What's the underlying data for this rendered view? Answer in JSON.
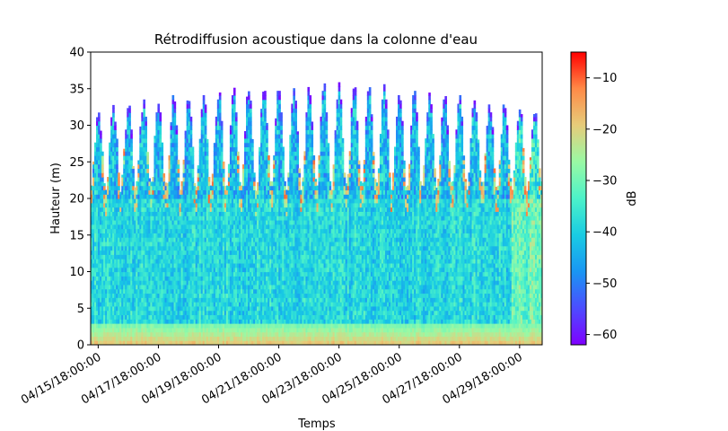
{
  "chart_data": {
    "type": "heatmap",
    "title": "Rétrodiffusion acoustique dans la colonne d'eau",
    "xlabel": "Temps",
    "ylabel": "Hauteur (m)",
    "ylim": [
      0,
      40
    ],
    "yticks": [
      0,
      5,
      10,
      15,
      20,
      25,
      30,
      35,
      40
    ],
    "xlim": [
      "04/15/12:00:00",
      "04/30/12:00:00"
    ],
    "xticks": [
      "04/15/18:00:00",
      "04/17/18:00:00",
      "04/19/18:00:00",
      "04/21/18:00:00",
      "04/23/18:00:00",
      "04/25/18:00:00",
      "04/27/18:00:00",
      "04/29/18:00:00"
    ],
    "colorbar": {
      "label": "dB",
      "range": [
        -62,
        -5
      ],
      "ticks": [
        -10,
        -20,
        -30,
        -40,
        -50,
        -60
      ],
      "colormap": "rainbow"
    },
    "legend": "colorbar-right",
    "grid": false,
    "tide_cycles_per_day": 2,
    "surface_height_range_m": [
      21.5,
      35.5
    ],
    "level_ranges_db": {
      "near_bed_0_3m": [
        -30,
        -18
      ],
      "mid_water_5_20m": [
        -44,
        -33
      ],
      "near_surface_20_27m": [
        -50,
        -35
      ],
      "surface_spikes": [
        -26,
        -10
      ],
      "top_fringe": [
        -62,
        -50
      ]
    }
  }
}
